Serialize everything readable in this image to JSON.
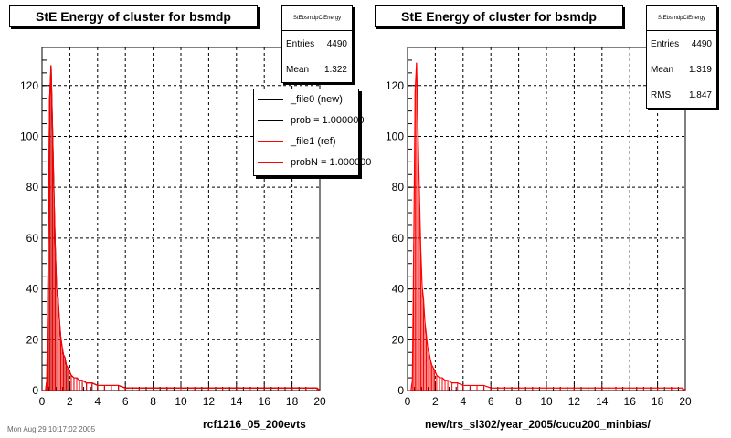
{
  "colors": {
    "new": "#000000",
    "ref": "#ff0000",
    "grid": "#000000"
  },
  "footer_text": "Mon Aug 29 10:17:02 2005",
  "chart_data": [
    {
      "type": "bar",
      "title": "StE Energy of cluster for bsmdp",
      "xlabel": "rcf1216_05_200evts",
      "ylabel": "",
      "xlim": [
        0,
        20
      ],
      "ylim": [
        0,
        135
      ],
      "xticks": [
        "0",
        "2",
        "4",
        "6",
        "8",
        "10",
        "12",
        "14",
        "16",
        "18",
        "20"
      ],
      "yticks": [
        "0",
        "20",
        "40",
        "60",
        "80",
        "100",
        "120"
      ],
      "grid": true,
      "stats": {
        "name": "StEbsmdpClEnergy",
        "entries_label": "Entries",
        "entries": "4490",
        "mean_label": "Mean",
        "mean": "1.322"
      },
      "legend": {
        "position": "top-right",
        "entries": [
          "_file0 (new)",
          "prob = 1.000000",
          "_file1 (ref)",
          "probN = 1.000000"
        ]
      },
      "series": [
        {
          "name": "_file0 (new)",
          "x": [
            0.25,
            0.35,
            0.45,
            0.55,
            0.65,
            0.75,
            0.85,
            0.95,
            1.05,
            1.15,
            1.25,
            1.35,
            1.45,
            1.55,
            1.65,
            1.75,
            1.85,
            1.95,
            2.1,
            2.3,
            2.5,
            2.7,
            2.9,
            3.2,
            3.6,
            4.0,
            4.5,
            5.0,
            5.5,
            6.0,
            7.0,
            8.0,
            9.0,
            10.0,
            11.0,
            12.0,
            13.0,
            14.0,
            15.0,
            16.0,
            17.0,
            18.0,
            19.0,
            19.8
          ],
          "values": [
            0,
            4,
            55,
            115,
            128,
            105,
            80,
            57,
            40,
            37,
            28,
            21,
            17,
            14,
            13,
            10,
            9,
            8,
            6,
            5,
            5,
            4,
            4,
            3,
            3,
            2,
            2,
            2,
            2,
            1,
            1,
            1,
            1,
            1,
            1,
            1,
            1,
            1,
            1,
            1,
            1,
            1,
            1,
            1
          ]
        },
        {
          "name": "_file1 (ref)",
          "x": [
            0.25,
            0.35,
            0.45,
            0.55,
            0.65,
            0.75,
            0.85,
            0.95,
            1.05,
            1.15,
            1.25,
            1.35,
            1.45,
            1.55,
            1.65,
            1.75,
            1.85,
            1.95,
            2.1,
            2.3,
            2.5,
            2.7,
            2.9,
            3.2,
            3.6,
            4.0,
            4.5,
            5.0,
            5.5,
            6.0,
            7.0,
            8.0,
            9.0,
            10.0,
            11.0,
            12.0,
            13.0,
            14.0,
            15.0,
            16.0,
            17.0,
            18.0,
            19.0,
            19.8
          ],
          "values": [
            0,
            4,
            55,
            115,
            128,
            105,
            80,
            57,
            40,
            37,
            28,
            21,
            17,
            14,
            13,
            10,
            9,
            8,
            6,
            5,
            5,
            4,
            4,
            3,
            3,
            2,
            2,
            2,
            2,
            1,
            1,
            1,
            1,
            1,
            1,
            1,
            1,
            1,
            1,
            1,
            1,
            1,
            1,
            1
          ]
        }
      ]
    },
    {
      "type": "bar",
      "title": "StE Energy of cluster for bsmdp",
      "xlabel": "new/trs_sl302/year_2005/cucu200_minbias/",
      "ylabel": "",
      "xlim": [
        0,
        20
      ],
      "ylim": [
        0,
        135
      ],
      "xticks": [
        "0",
        "2",
        "4",
        "6",
        "8",
        "10",
        "12",
        "14",
        "16",
        "18",
        "20"
      ],
      "yticks": [
        "0",
        "20",
        "40",
        "60",
        "80",
        "100",
        "120"
      ],
      "grid": true,
      "stats": {
        "name": "StEbsmdpClEnergy",
        "entries_label": "Entries",
        "entries": "4490",
        "mean_label": "Mean",
        "mean": "1.319",
        "rms_label": "RMS",
        "rms": "1.847"
      },
      "series": [
        {
          "name": "",
          "x": [
            0.25,
            0.35,
            0.45,
            0.55,
            0.65,
            0.75,
            0.85,
            0.95,
            1.05,
            1.15,
            1.25,
            1.35,
            1.45,
            1.55,
            1.65,
            1.75,
            1.85,
            1.95,
            2.1,
            2.3,
            2.5,
            2.7,
            2.9,
            3.2,
            3.6,
            4.0,
            4.5,
            5.0,
            5.5,
            6.0,
            7.0,
            8.0,
            9.0,
            10.0,
            11.0,
            12.0,
            13.0,
            14.0,
            15.0,
            16.0,
            17.0,
            18.0,
            19.0,
            19.8
          ],
          "values": [
            0,
            4,
            58,
            118,
            129,
            104,
            79,
            56,
            41,
            36,
            27,
            22,
            17,
            15,
            12,
            10,
            9,
            8,
            6,
            5,
            5,
            4,
            4,
            3,
            3,
            2,
            2,
            2,
            2,
            1,
            1,
            1,
            1,
            1,
            1,
            1,
            1,
            1,
            1,
            1,
            1,
            1,
            1,
            1
          ]
        }
      ]
    }
  ]
}
